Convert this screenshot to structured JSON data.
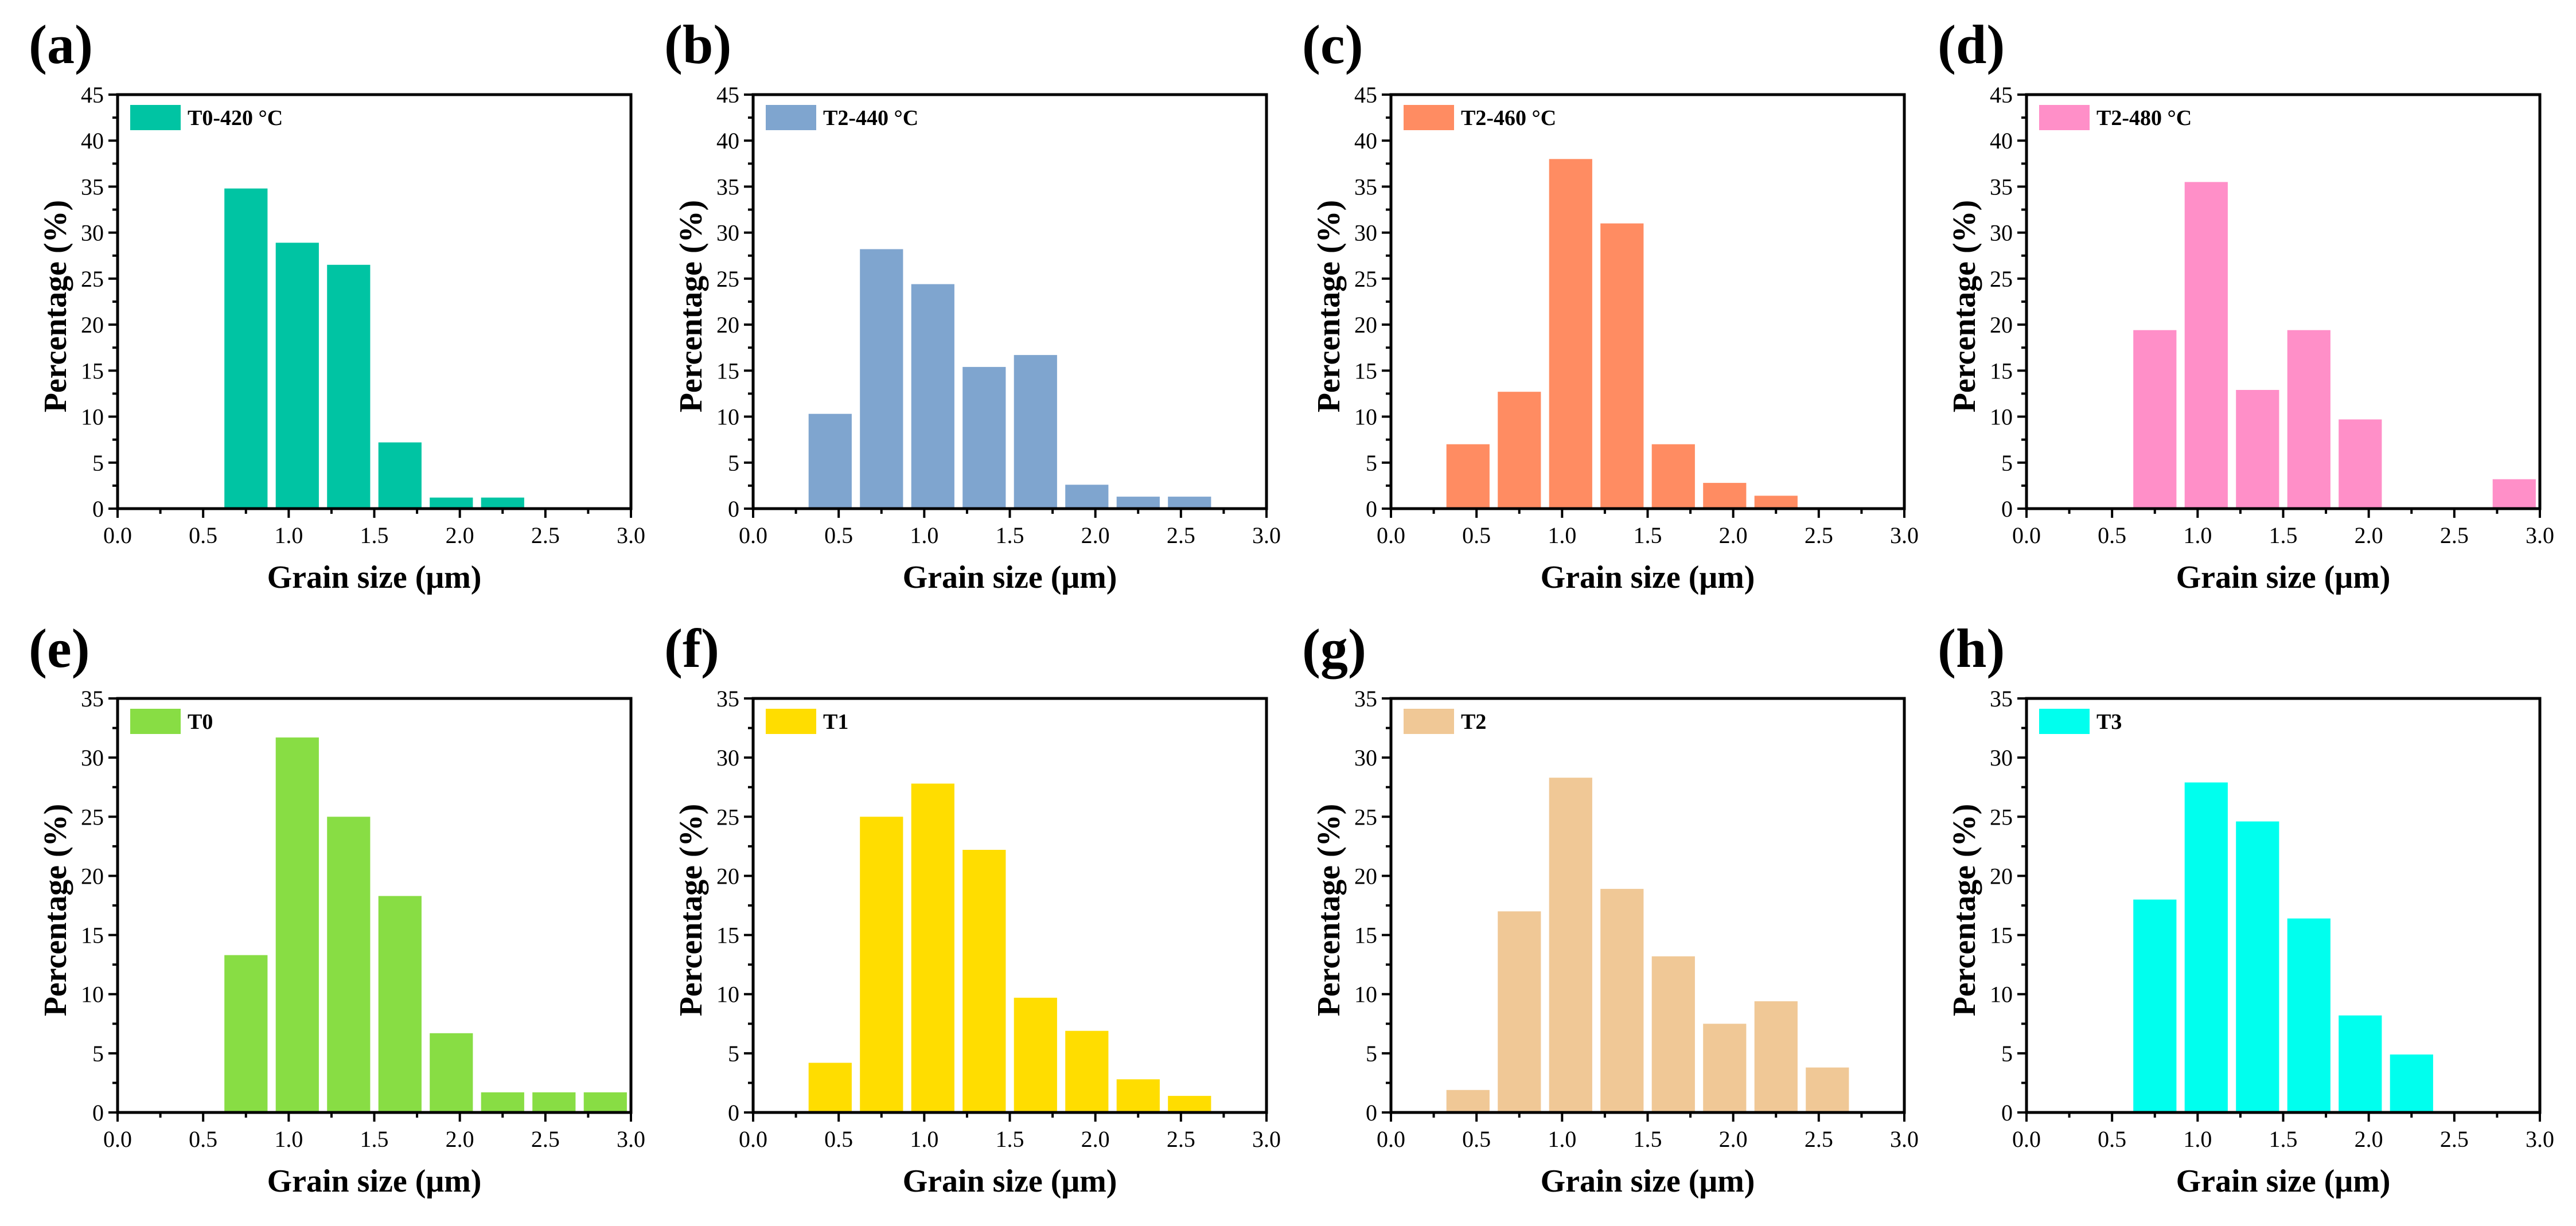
{
  "chart_data": [
    {
      "id": "a",
      "panel_label": "(a)",
      "type": "bar",
      "legend": "T0-420 °C",
      "color": "#00C4A3",
      "xlabel": "Grain size (μm)",
      "ylabel": "Percentage (%)",
      "xlim": [
        0,
        3.0
      ],
      "ylim": [
        0,
        45
      ],
      "xticks": [
        "0.0",
        "0.5",
        "1.0",
        "1.5",
        "2.0",
        "2.5",
        "3.0"
      ],
      "yticks": [
        "0",
        "5",
        "10",
        "15",
        "20",
        "25",
        "30",
        "35",
        "40",
        "45"
      ],
      "bin_width": 0.3,
      "x": [
        0.75,
        1.05,
        1.35,
        1.65,
        1.95,
        2.25
      ],
      "values": [
        34.8,
        28.9,
        26.5,
        7.2,
        1.2,
        1.2
      ]
    },
    {
      "id": "b",
      "panel_label": "(b)",
      "type": "bar",
      "legend": "T2-440 °C",
      "color": "#7FA5CF",
      "xlabel": "Grain size (μm)",
      "ylabel": "Percentage (%)",
      "xlim": [
        0,
        3.0
      ],
      "ylim": [
        0,
        45
      ],
      "xticks": [
        "0.0",
        "0.5",
        "1.0",
        "1.5",
        "2.0",
        "2.5",
        "3.0"
      ],
      "yticks": [
        "0",
        "5",
        "10",
        "15",
        "20",
        "25",
        "30",
        "35",
        "40",
        "45"
      ],
      "bin_width": 0.3,
      "x": [
        0.45,
        0.75,
        1.05,
        1.35,
        1.65,
        1.95,
        2.25,
        2.55
      ],
      "values": [
        10.3,
        28.2,
        24.4,
        15.4,
        16.7,
        2.6,
        1.3,
        1.3
      ]
    },
    {
      "id": "c",
      "panel_label": "(c)",
      "type": "bar",
      "legend": "T2-460 °C",
      "color": "#FF8C62",
      "xlabel": "Grain size (μm)",
      "ylabel": "Percentage (%)",
      "xlim": [
        0,
        3.0
      ],
      "ylim": [
        0,
        45
      ],
      "xticks": [
        "0.0",
        "0.5",
        "1.0",
        "1.5",
        "2.0",
        "2.5",
        "3.0"
      ],
      "yticks": [
        "0",
        "5",
        "10",
        "15",
        "20",
        "25",
        "30",
        "35",
        "40",
        "45"
      ],
      "bin_width": 0.3,
      "x": [
        0.45,
        0.75,
        1.05,
        1.35,
        1.65,
        1.95,
        2.25
      ],
      "values": [
        7.0,
        12.7,
        38.0,
        31.0,
        7.0,
        2.8,
        1.4
      ]
    },
    {
      "id": "d",
      "panel_label": "(d)",
      "type": "bar",
      "legend": "T2-480 °C",
      "color": "#FF8FC8",
      "xlabel": "Grain size (μm)",
      "ylabel": "Percentage (%)",
      "xlim": [
        0,
        3.0
      ],
      "ylim": [
        0,
        45
      ],
      "xticks": [
        "0.0",
        "0.5",
        "1.0",
        "1.5",
        "2.0",
        "2.5",
        "3.0"
      ],
      "yticks": [
        "0",
        "5",
        "10",
        "15",
        "20",
        "25",
        "30",
        "35",
        "40",
        "45"
      ],
      "bin_width": 0.3,
      "x": [
        0.75,
        1.05,
        1.35,
        1.65,
        1.95,
        2.85
      ],
      "values": [
        19.4,
        35.5,
        12.9,
        19.4,
        9.7,
        3.2
      ]
    },
    {
      "id": "e",
      "panel_label": "(e)",
      "type": "bar",
      "legend": "T0",
      "color": "#88DD44",
      "xlabel": "Grain size (μm)",
      "ylabel": "Percentage (%)",
      "xlim": [
        0,
        3.0
      ],
      "ylim": [
        0,
        35
      ],
      "xticks": [
        "0.0",
        "0.5",
        "1.0",
        "1.5",
        "2.0",
        "2.5",
        "3.0"
      ],
      "yticks": [
        "0",
        "5",
        "10",
        "15",
        "20",
        "25",
        "30",
        "35"
      ],
      "bin_width": 0.3,
      "x": [
        0.75,
        1.05,
        1.35,
        1.65,
        1.95,
        2.25,
        2.55,
        2.85
      ],
      "values": [
        13.3,
        31.7,
        25.0,
        18.3,
        6.7,
        1.7,
        1.7,
        1.7
      ]
    },
    {
      "id": "f",
      "panel_label": "(f)",
      "type": "bar",
      "legend": "T1",
      "color": "#FFDD00",
      "xlabel": "Grain size (μm)",
      "ylabel": "Percentage (%)",
      "xlim": [
        0,
        3.0
      ],
      "ylim": [
        0,
        35
      ],
      "xticks": [
        "0.0",
        "0.5",
        "1.0",
        "1.5",
        "2.0",
        "2.5",
        "3.0"
      ],
      "yticks": [
        "0",
        "5",
        "10",
        "15",
        "20",
        "25",
        "30",
        "35"
      ],
      "bin_width": 0.3,
      "x": [
        0.45,
        0.75,
        1.05,
        1.35,
        1.65,
        1.95,
        2.25,
        2.55
      ],
      "values": [
        4.2,
        25.0,
        27.8,
        22.2,
        9.7,
        6.9,
        2.8,
        1.4
      ]
    },
    {
      "id": "g",
      "panel_label": "(g)",
      "type": "bar",
      "legend": "T2",
      "color": "#F0C896",
      "xlabel": "Grain size (μm)",
      "ylabel": "Percentage (%)",
      "xlim": [
        0,
        3.0
      ],
      "ylim": [
        0,
        35
      ],
      "xticks": [
        "0.0",
        "0.5",
        "1.0",
        "1.5",
        "2.0",
        "2.5",
        "3.0"
      ],
      "yticks": [
        "0",
        "5",
        "10",
        "15",
        "20",
        "25",
        "30",
        "35"
      ],
      "bin_width": 0.3,
      "x": [
        0.45,
        0.75,
        1.05,
        1.35,
        1.65,
        1.95,
        2.25,
        2.55
      ],
      "values": [
        1.9,
        17.0,
        28.3,
        18.9,
        13.2,
        7.5,
        9.4,
        3.8
      ]
    },
    {
      "id": "h",
      "panel_label": "(h)",
      "type": "bar",
      "legend": "T3",
      "color": "#00FFEE",
      "xlabel": "Grain size (μm)",
      "ylabel": "Percentage (%)",
      "xlim": [
        0,
        3.0
      ],
      "ylim": [
        0,
        35
      ],
      "xticks": [
        "0.0",
        "0.5",
        "1.0",
        "1.5",
        "2.0",
        "2.5",
        "3.0"
      ],
      "yticks": [
        "0",
        "5",
        "10",
        "15",
        "20",
        "25",
        "30",
        "35"
      ],
      "bin_width": 0.3,
      "x": [
        0.75,
        1.05,
        1.35,
        1.65,
        1.95,
        2.25
      ],
      "values": [
        18.0,
        27.9,
        24.6,
        16.4,
        8.2,
        4.9
      ]
    }
  ]
}
